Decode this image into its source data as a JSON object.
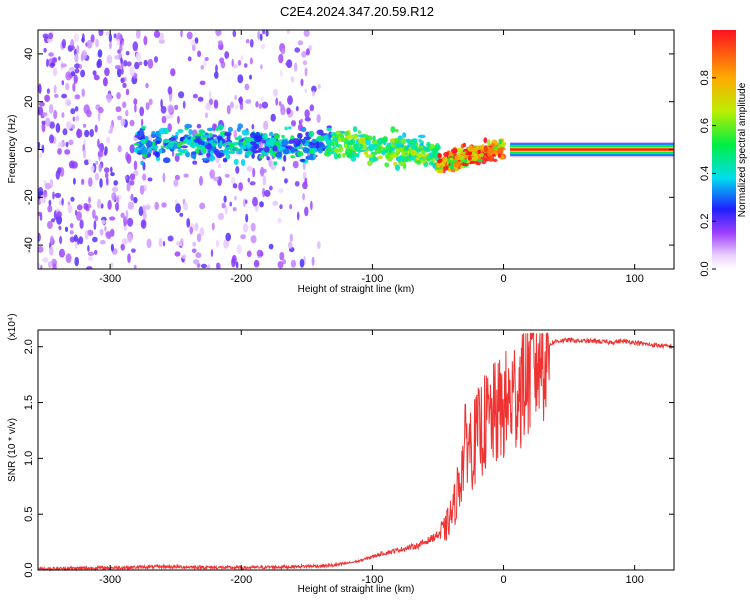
{
  "title": "C2E4.2024.347.20.59.R12",
  "colors": {
    "snr_line": "#ee3333",
    "axis": "#000000",
    "background": "#ffffff"
  },
  "chart_data": [
    {
      "type": "heatmap",
      "name": "spectrogram",
      "xlabel": "Height of straight line (km)",
      "ylabel": "Frequency (Hz)",
      "xlim": [
        -355,
        130
      ],
      "ylim": [
        -50,
        50
      ],
      "xticks": [
        -300,
        -200,
        -100,
        0,
        100
      ],
      "yticks": [
        -40,
        -20,
        0,
        20,
        40
      ],
      "colorbar": {
        "label": "Normalized spectral amplitude",
        "range": [
          0,
          1
        ],
        "ticks": [
          0.0,
          0.2,
          0.4,
          0.6,
          0.8
        ],
        "colormap": "white-violet-blue-cyan-green-yellow-red"
      },
      "features": [
        {
          "x_range": [
            -355,
            -140
          ],
          "frequency_spread": [
            -50,
            50
          ],
          "amplitude": 0.1,
          "note_visible": "scattered low amplitude"
        },
        {
          "x_range": [
            -280,
            -50
          ],
          "frequency_center": 2,
          "frequency_width": 6,
          "amplitude": 0.4
        },
        {
          "x_range": [
            -50,
            0
          ],
          "frequency_center": -3,
          "frequency_width": 4,
          "amplitude": 0.7
        },
        {
          "x_range": [
            5,
            130
          ],
          "frequency_center": 0,
          "frequency_width": 2,
          "amplitude": 1.0
        }
      ]
    },
    {
      "type": "line",
      "name": "snr",
      "xlabel": "Height of straight line (km)",
      "ylabel": "SNR (10 * v/v)",
      "scale_label": "(x10⁴)",
      "xlim": [
        -355,
        130
      ],
      "ylim": [
        0,
        2.15
      ],
      "xticks": [
        -300,
        -200,
        -100,
        0,
        100
      ],
      "yticks": [
        0.0,
        0.5,
        1.0,
        1.5,
        2.0
      ],
      "series": [
        {
          "x": [
            -355,
            -300,
            -260,
            -200,
            -160,
            -130,
            -110,
            -95,
            -80,
            -65,
            -55,
            -45,
            -38,
            -32,
            -28,
            -24,
            -20,
            -15,
            -10,
            -5,
            0,
            5,
            10,
            15,
            20,
            25,
            30,
            35,
            40,
            50,
            60,
            70,
            80,
            90,
            100,
            110,
            120,
            130
          ],
          "y": [
            0.01,
            0.02,
            0.03,
            0.02,
            0.03,
            0.04,
            0.08,
            0.14,
            0.18,
            0.22,
            0.28,
            0.35,
            0.55,
            0.9,
            1.2,
            1.1,
            1.2,
            1.3,
            1.35,
            1.4,
            1.45,
            1.5,
            1.6,
            1.7,
            1.8,
            1.9,
            1.98,
            2.02,
            2.05,
            2.06,
            2.05,
            2.05,
            2.04,
            2.05,
            2.04,
            2.02,
            2.01,
            2.0
          ]
        }
      ]
    }
  ]
}
